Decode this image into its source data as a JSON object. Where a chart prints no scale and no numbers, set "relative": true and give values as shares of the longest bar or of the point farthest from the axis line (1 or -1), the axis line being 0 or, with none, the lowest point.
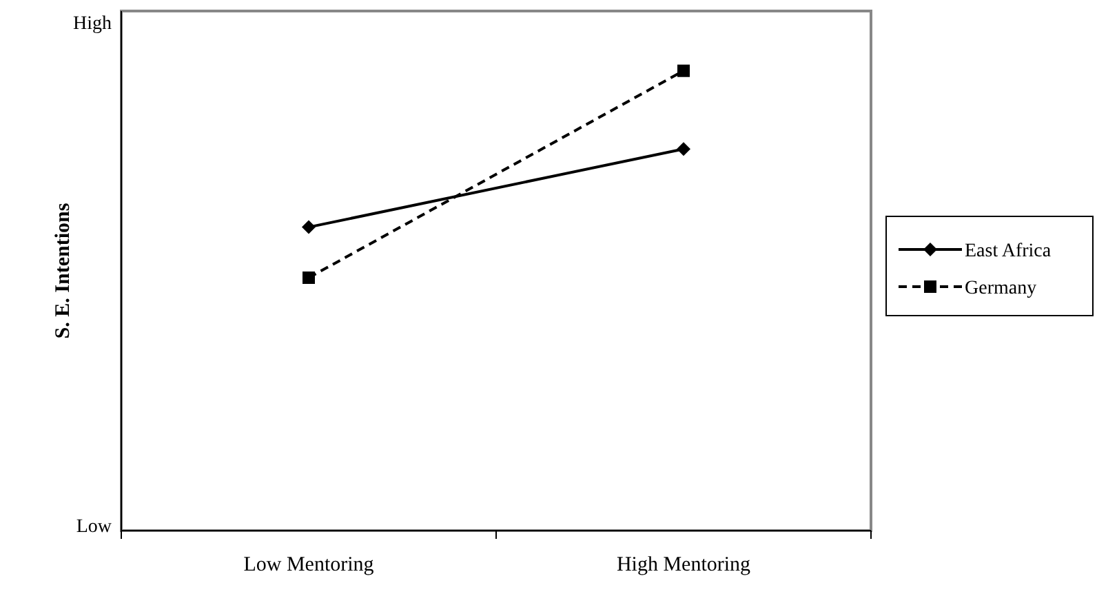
{
  "chart_data": {
    "type": "line",
    "ylabel": "S. E. Intentions",
    "categories": [
      "Low Mentoring",
      "High Mentoring"
    ],
    "relative": true,
    "annotations": [
      "High",
      "Low"
    ],
    "series": [
      {
        "name": "East Africa",
        "color": "#000000",
        "values": [
          0.66,
          0.83
        ],
        "marker": "diamond",
        "line_style": "solid"
      },
      {
        "name": "Germany",
        "color": "#000000",
        "values": [
          0.55,
          1
        ],
        "marker": "square",
        "line_style": "dashed"
      }
    ],
    "legend": "right"
  }
}
